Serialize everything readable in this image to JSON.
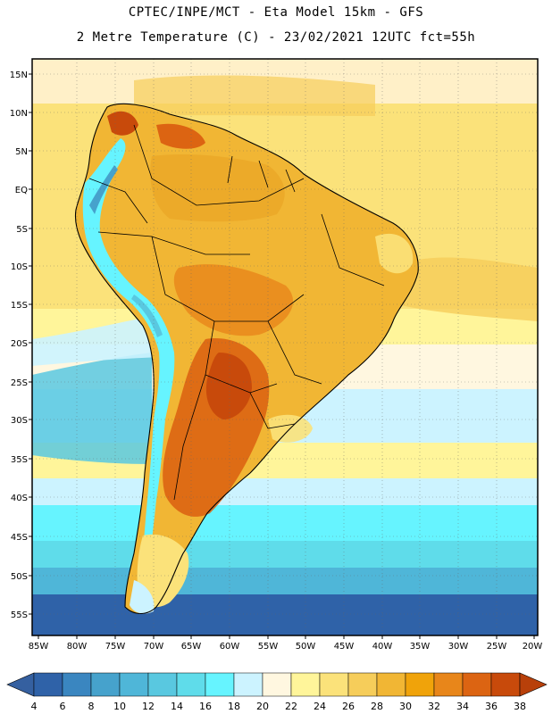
{
  "header": {
    "line1": "CPTEC/INPE/MCT  -   Eta Model 15km  -  GFS",
    "line2": "2 Metre Temperature (C) - 23/02/2021 12UTC fct=55h"
  },
  "map": {
    "lat_ticks": [
      "15N",
      "10N",
      "5N",
      "EQ",
      "5S",
      "10S",
      "15S",
      "20S",
      "25S",
      "30S",
      "35S",
      "40S",
      "45S",
      "50S",
      "55S"
    ],
    "lon_ticks": [
      "85W",
      "80W",
      "75W",
      "70W",
      "65W",
      "60W",
      "55W",
      "50W",
      "45W",
      "40W",
      "35W",
      "30W",
      "25W",
      "20W"
    ]
  },
  "colorbar": {
    "labels": [
      "4",
      "6",
      "8",
      "10",
      "12",
      "14",
      "16",
      "18",
      "20",
      "22",
      "24",
      "26",
      "28",
      "30",
      "32",
      "34",
      "36",
      "38"
    ],
    "colors": [
      "#2f62a8",
      "#3a86c0",
      "#46a2cc",
      "#4fb6d8",
      "#59c8e0",
      "#5fdcea",
      "#66f4ff",
      "#ccf3ff",
      "#fff7e0",
      "#fff59a",
      "#fbe27a",
      "#f6cd5a",
      "#f1b634",
      "#f0a30a",
      "#e8861a",
      "#dc6412",
      "#c84a0b"
    ],
    "low_color": "#3560a0",
    "high_color": "#b8400a"
  }
}
